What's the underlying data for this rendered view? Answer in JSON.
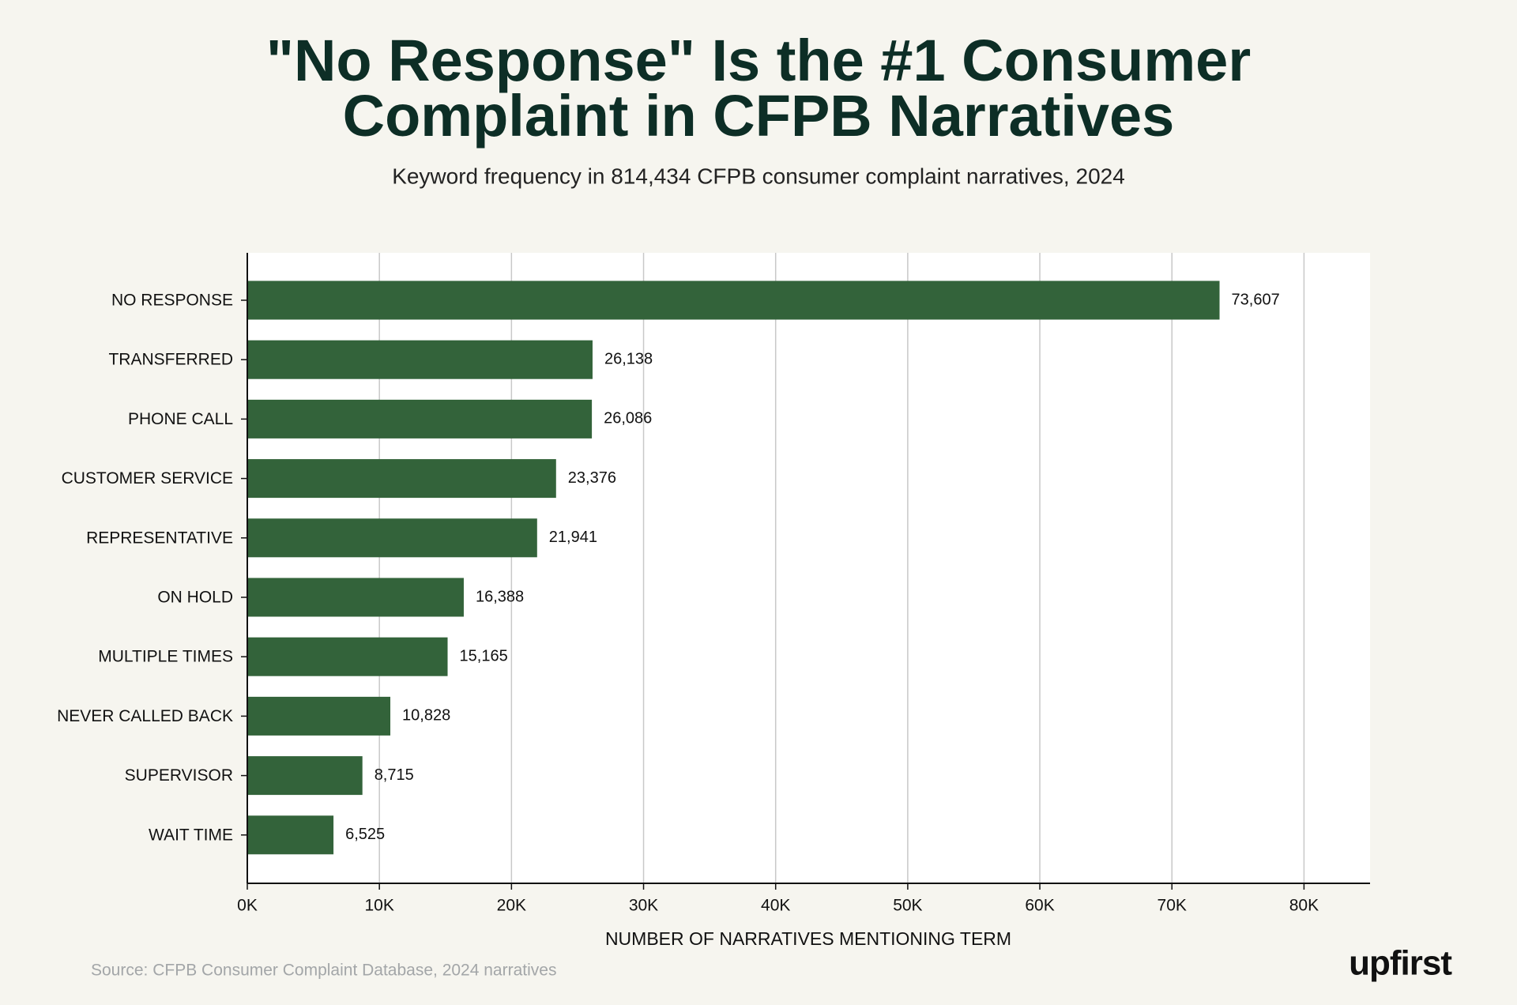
{
  "chart_data": {
    "type": "bar",
    "orientation": "horizontal",
    "title": "\"No Response\" Is the #1 Consumer Complaint in CFPB Narratives",
    "subtitle": "Keyword frequency in 814,434 CFPB consumer complaint narratives, 2024",
    "categories": [
      "NO RESPONSE",
      "TRANSFERRED",
      "PHONE CALL",
      "CUSTOMER SERVICE",
      "REPRESENTATIVE",
      "ON HOLD",
      "MULTIPLE TIMES",
      "NEVER CALLED BACK",
      "SUPERVISOR",
      "WAIT TIME"
    ],
    "values": [
      73607,
      26138,
      26086,
      23376,
      21941,
      16388,
      15165,
      10828,
      8715,
      6525
    ],
    "value_labels": [
      "73,607",
      "26,138",
      "26,086",
      "23,376",
      "21,941",
      "16,388",
      "15,165",
      "10,828",
      "8,715",
      "6,525"
    ],
    "color": "#33633a",
    "xlabel": "NUMBER OF NARRATIVES MENTIONING TERM",
    "xlim": [
      0,
      85000
    ],
    "xticks": [
      {
        "value": 0,
        "label": "0K"
      },
      {
        "value": 10000,
        "label": "10K"
      },
      {
        "value": 20000,
        "label": "20K"
      },
      {
        "value": 30000,
        "label": "30K"
      },
      {
        "value": 40000,
        "label": "40K"
      },
      {
        "value": 50000,
        "label": "50K"
      },
      {
        "value": 60000,
        "label": "60K"
      },
      {
        "value": 70000,
        "label": "70K"
      },
      {
        "value": 80000,
        "label": "80K"
      }
    ],
    "grid": true,
    "source": "Source: CFPB Consumer Complaint Database, 2024 narratives",
    "logo": "upfirst"
  }
}
